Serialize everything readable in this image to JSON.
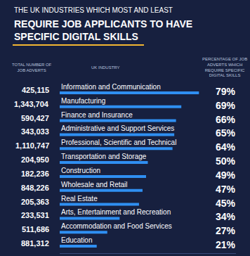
{
  "chart_data": {
    "type": "bar",
    "orientation": "horizontal",
    "title": "THE UK INDUSTRIES WHICH MOST AND LEAST REQUIRE JOB APPLICANTS TO HAVE SPECIFIC DIGITAL SKILLS",
    "headers": {
      "adverts": "TOTAL NUMBER OF JOB ADVERTS",
      "industry": "UK INDUSTRY",
      "percentage": "PERCENTAGE OF JOB ADVERTS WHICH REQUIRE SPECIFIC DIGITAL SKILLS"
    },
    "categories": [
      "Information and Communication",
      "Manufacturing",
      "Finance and Insurance",
      "Administrative and Support Services",
      "Professional, Scientific and Technical",
      "Transportation and Storage",
      "Construction",
      "Wholesale and Retail",
      "Real Estate",
      "Arts, Entertainment and Recreation",
      "Accommodation and Food Services",
      "Education"
    ],
    "adverts": [
      "425,115",
      "1,343,704",
      "590,427",
      "343,033",
      "1,110,747",
      "204,950",
      "182,236",
      "848,226",
      "205,363",
      "233,531",
      "511,686",
      "881,312"
    ],
    "values": [
      79,
      69,
      66,
      65,
      64,
      50,
      49,
      47,
      45,
      34,
      27,
      21
    ],
    "value_labels": [
      "79%",
      "69%",
      "66%",
      "65%",
      "64%",
      "50%",
      "49%",
      "47%",
      "45%",
      "34%",
      "27%",
      "21%"
    ],
    "color": "#2f8ff2",
    "xlim": [
      0,
      100
    ],
    "xticks": [],
    "tick_labels": false,
    "grid": false,
    "data_labels": true
  }
}
